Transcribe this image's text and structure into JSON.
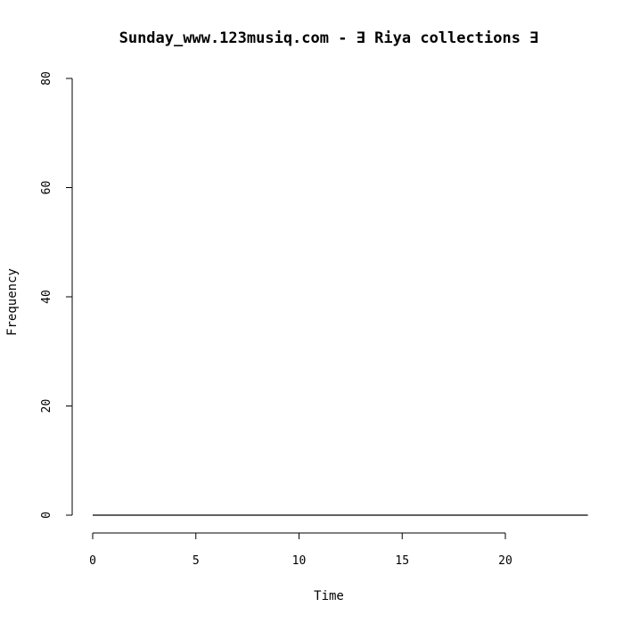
{
  "chart_data": {
    "type": "line",
    "title": "Sunday_www.123musiq.com -  ∃ Riya collections ∃",
    "xlabel": "Time",
    "ylabel": "Frequency",
    "xlim": [
      0,
      24
    ],
    "ylim": [
      0,
      80
    ],
    "xticks": [
      0,
      5,
      10,
      15,
      20
    ],
    "yticks": [
      0,
      20,
      40,
      60,
      80
    ],
    "grid": false,
    "series": [
      {
        "x": [
          0,
          24
        ],
        "values": [
          0,
          0
        ],
        "color": "#000000"
      }
    ]
  }
}
